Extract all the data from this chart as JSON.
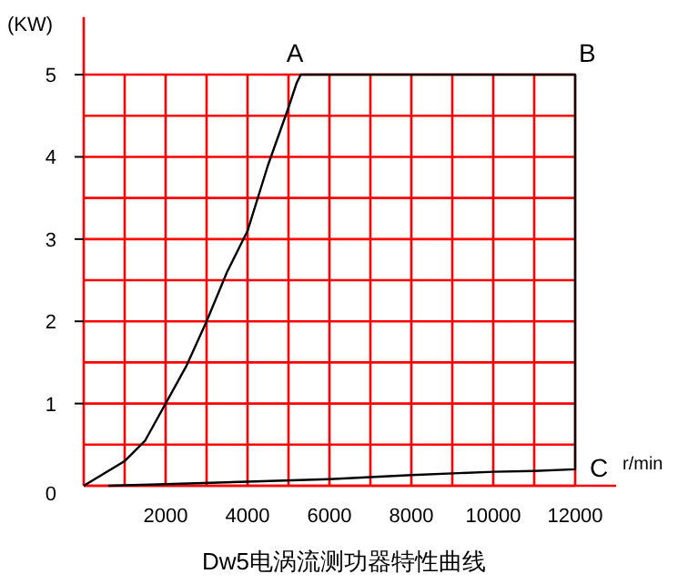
{
  "chart_data": {
    "type": "line",
    "title": "Dw5电涡流测功器特性曲线",
    "xlabel": "r/min",
    "ylabel": "(KW)",
    "xlim": [
      0,
      13000
    ],
    "ylim": [
      0,
      5.7
    ],
    "xticks": [
      {
        "value": 1000,
        "label": null
      },
      2000,
      {
        "value": 3000,
        "label": null
      },
      4000,
      {
        "value": 5000,
        "label": null
      },
      6000,
      {
        "value": 7000,
        "label": null
      },
      8000,
      {
        "value": 9000,
        "label": null
      },
      10000,
      {
        "value": 11000,
        "label": null
      },
      12000
    ],
    "yticks": [
      0,
      {
        "value": 0.5,
        "label": null
      },
      1,
      {
        "value": 1.5,
        "label": null
      },
      2,
      {
        "value": 2.5,
        "label": null
      },
      3,
      {
        "value": 3.5,
        "label": null
      },
      4,
      {
        "value": 4.5,
        "label": null
      },
      5
    ],
    "grid": true,
    "line_style": "solid",
    "series": [
      {
        "color": "#000000",
        "x": [
          0,
          1000,
          1500,
          2000,
          2500,
          3000,
          3500,
          4000,
          4500,
          5000,
          5200,
          5300,
          12000,
          12000,
          11000,
          10000,
          8000,
          6000,
          4000,
          2000,
          600
        ],
        "values": [
          0,
          0.3,
          0.55,
          1.0,
          1.45,
          2.0,
          2.6,
          3.1,
          3.9,
          4.6,
          4.9,
          5,
          5,
          0.2,
          0.18,
          0.17,
          0.13,
          0.08,
          0.05,
          0.02,
          0
        ]
      }
    ],
    "annotations": [
      "A",
      "B",
      "C"
    ]
  }
}
